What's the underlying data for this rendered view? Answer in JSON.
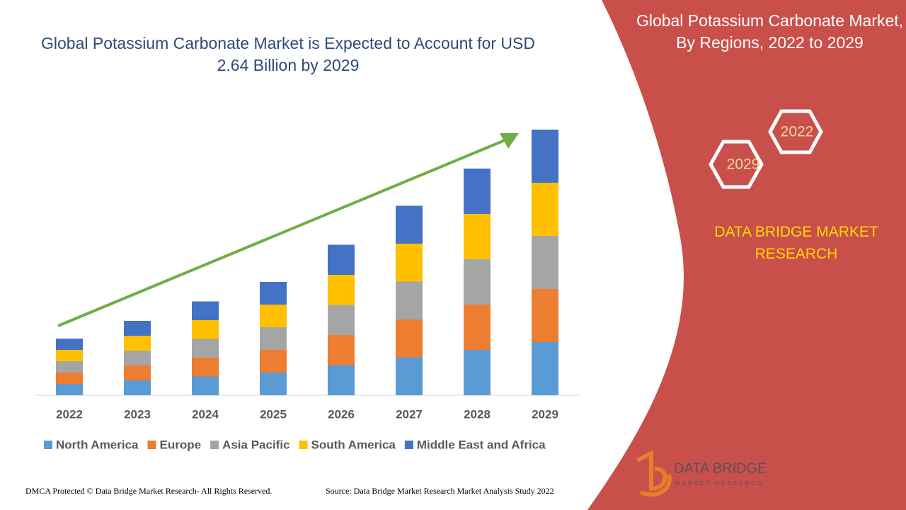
{
  "chart_data": {
    "type": "stacked_bar",
    "title": "Global Potassium Carbonate Market is Expected to Account for USD 2.64 Billion by 2029",
    "categories": [
      "2022",
      "2023",
      "2024",
      "2025",
      "2026",
      "2027",
      "2028",
      "2029"
    ],
    "series": [
      {
        "name": "North America",
        "color": "#5b9bd5",
        "values": [
          16,
          21,
          26.5,
          32,
          42.5,
          53.5,
          64,
          75
        ]
      },
      {
        "name": "Europe",
        "color": "#ed7d31",
        "values": [
          16,
          21,
          26.5,
          32,
          42.5,
          53.5,
          64,
          75
        ]
      },
      {
        "name": "Asia Pacific",
        "color": "#a5a5a5",
        "values": [
          16,
          21,
          26.5,
          32,
          42.5,
          53.5,
          64,
          75
        ]
      },
      {
        "name": "South America",
        "color": "#ffc000",
        "values": [
          16,
          21,
          26.5,
          32,
          42.5,
          53.5,
          64,
          75
        ]
      },
      {
        "name": "Middle East and Africa",
        "color": "#4472c4",
        "values": [
          16,
          21,
          26.5,
          32,
          42.5,
          53.5,
          64,
          75
        ]
      }
    ],
    "ylim": [
      0,
      380
    ],
    "legend": "bottom"
  },
  "panel": {
    "title": "Global Potassium Carbonate Market, By Regions, 2022 to 2029",
    "hex_labels": [
      "2022",
      "2029"
    ],
    "brand": "DATA BRIDGE MARKET RESEARCH"
  },
  "logo": {
    "name": "DATA BRIDGE",
    "tagline": "MARKET RESEARCH"
  },
  "footer": {
    "copyright": "DMCA Protected © Data Bridge Market Research- All Rights Reserved.",
    "source": "Source: Data Bridge Market Research Market Analysis Study 2022"
  }
}
